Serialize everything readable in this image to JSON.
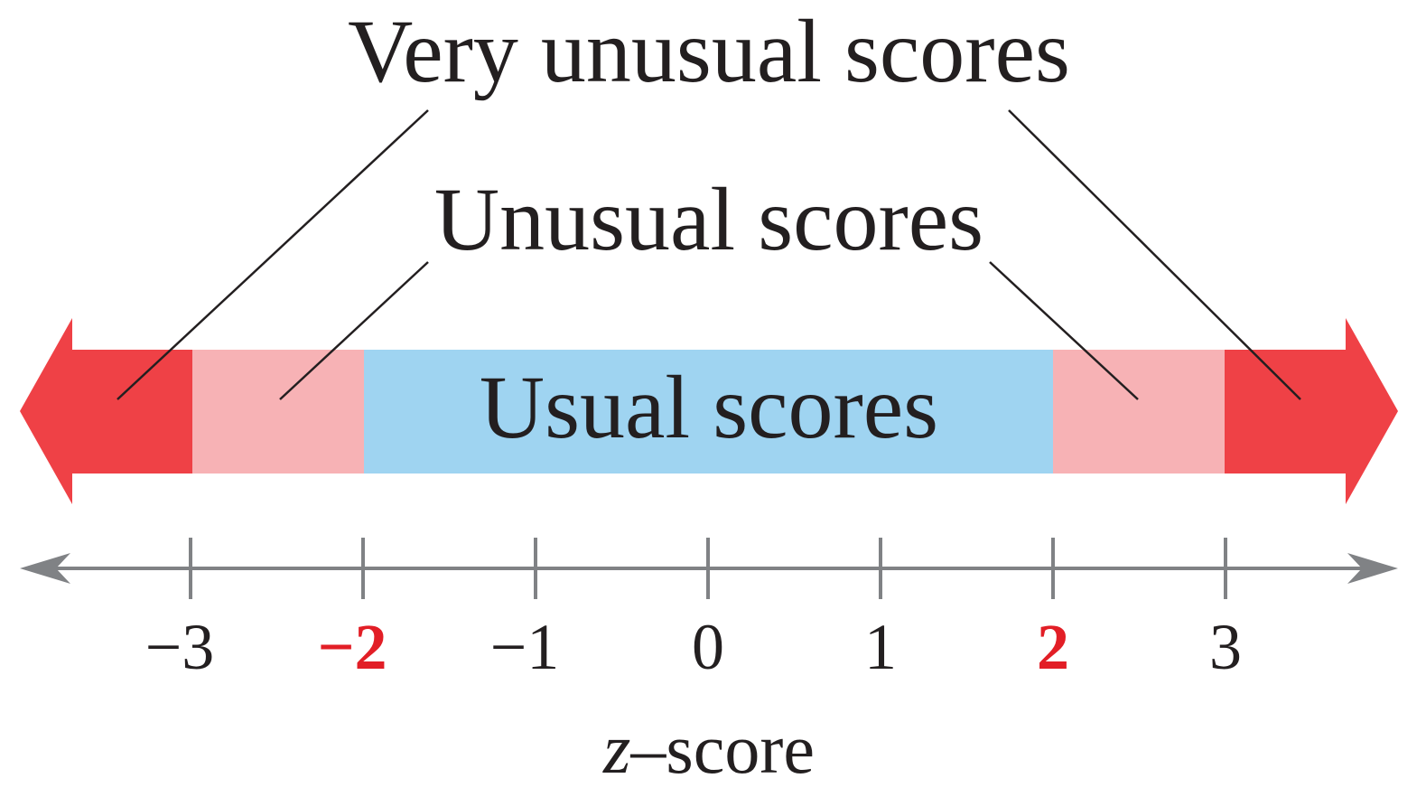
{
  "labels": {
    "very_unusual": "Very unusual scores",
    "unusual": "Unusual scores",
    "usual": "Usual scores"
  },
  "axis": {
    "variable": "z",
    "suffix": "–score",
    "ticks": [
      {
        "value": -3,
        "label": "−3",
        "highlight": false
      },
      {
        "value": -2,
        "label": "−2",
        "highlight": true
      },
      {
        "value": -1,
        "label": "−1",
        "highlight": false
      },
      {
        "value": 0,
        "label": "0",
        "highlight": false
      },
      {
        "value": 1,
        "label": "1",
        "highlight": false
      },
      {
        "value": 2,
        "label": "2",
        "highlight": true
      },
      {
        "value": 3,
        "label": "3",
        "highlight": false
      }
    ]
  },
  "colors": {
    "very_unusual": "#ef4146",
    "unusual": "#f7b2b5",
    "usual": "#9fd4f1",
    "axis": "#808285",
    "text": "#231f20",
    "highlight": "#e21e26"
  }
}
